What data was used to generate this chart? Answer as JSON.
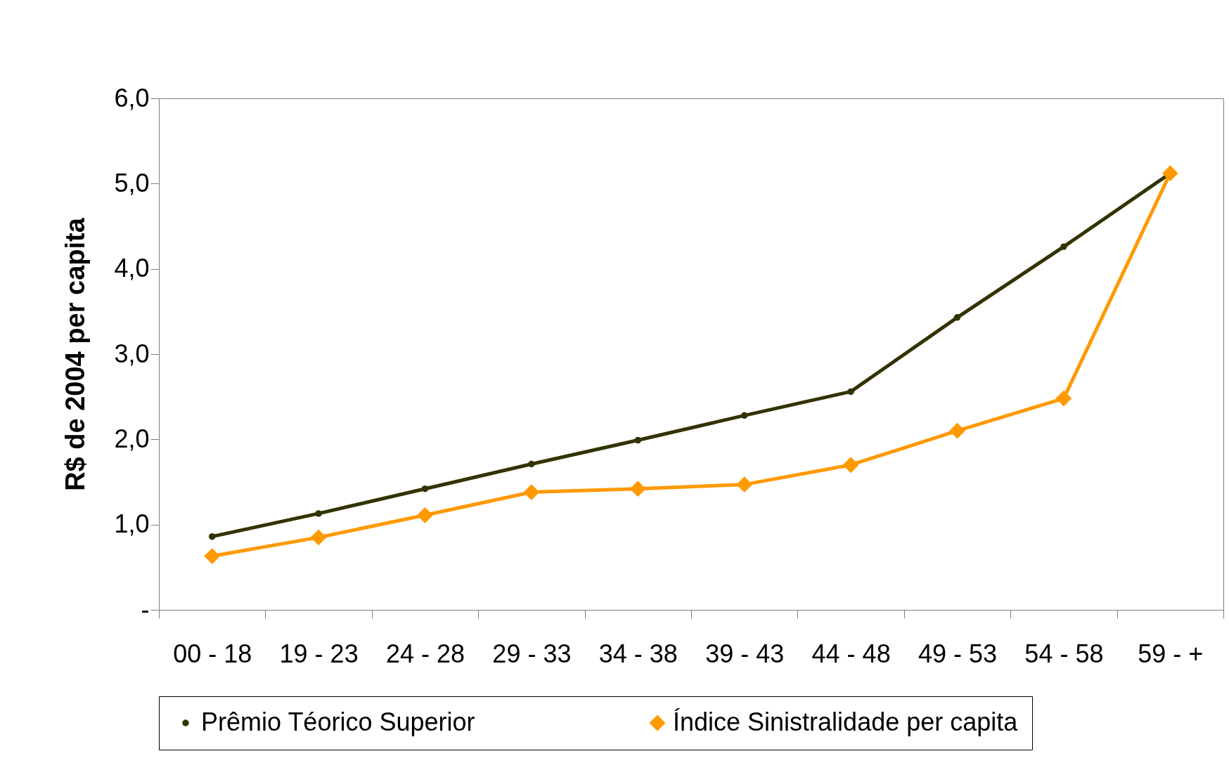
{
  "chart_data": {
    "type": "line",
    "ylabel": "R$ de 2004 per capita",
    "categories": [
      "00 - 18",
      "19 - 23",
      "24 - 28",
      "29 - 33",
      "34 - 38",
      "39 - 43",
      "44 - 48",
      "49 - 53",
      "54 - 58",
      "59 - +"
    ],
    "series": [
      {
        "name": "Prêmio Téorico Superior",
        "color": "#333300",
        "marker": "circle",
        "values": [
          0.86,
          1.13,
          1.42,
          1.71,
          1.99,
          2.28,
          2.56,
          3.43,
          4.26,
          5.12
        ]
      },
      {
        "name": "Índice Sinistralidade per capita",
        "color": "#ff9900",
        "marker": "diamond",
        "values": [
          0.63,
          0.85,
          1.11,
          1.38,
          1.42,
          1.47,
          1.7,
          2.1,
          2.48,
          5.12
        ]
      }
    ],
    "ylim": [
      0,
      6
    ],
    "yticks": [
      {
        "value": 0,
        "label": "-"
      },
      {
        "value": 1,
        "label": "1,0"
      },
      {
        "value": 2,
        "label": "2,0"
      },
      {
        "value": 3,
        "label": "3,0"
      },
      {
        "value": 4,
        "label": "4,0"
      },
      {
        "value": 5,
        "label": "5,0"
      },
      {
        "value": 6,
        "label": "6,0"
      }
    ],
    "grid": false,
    "legend": "bottom"
  }
}
